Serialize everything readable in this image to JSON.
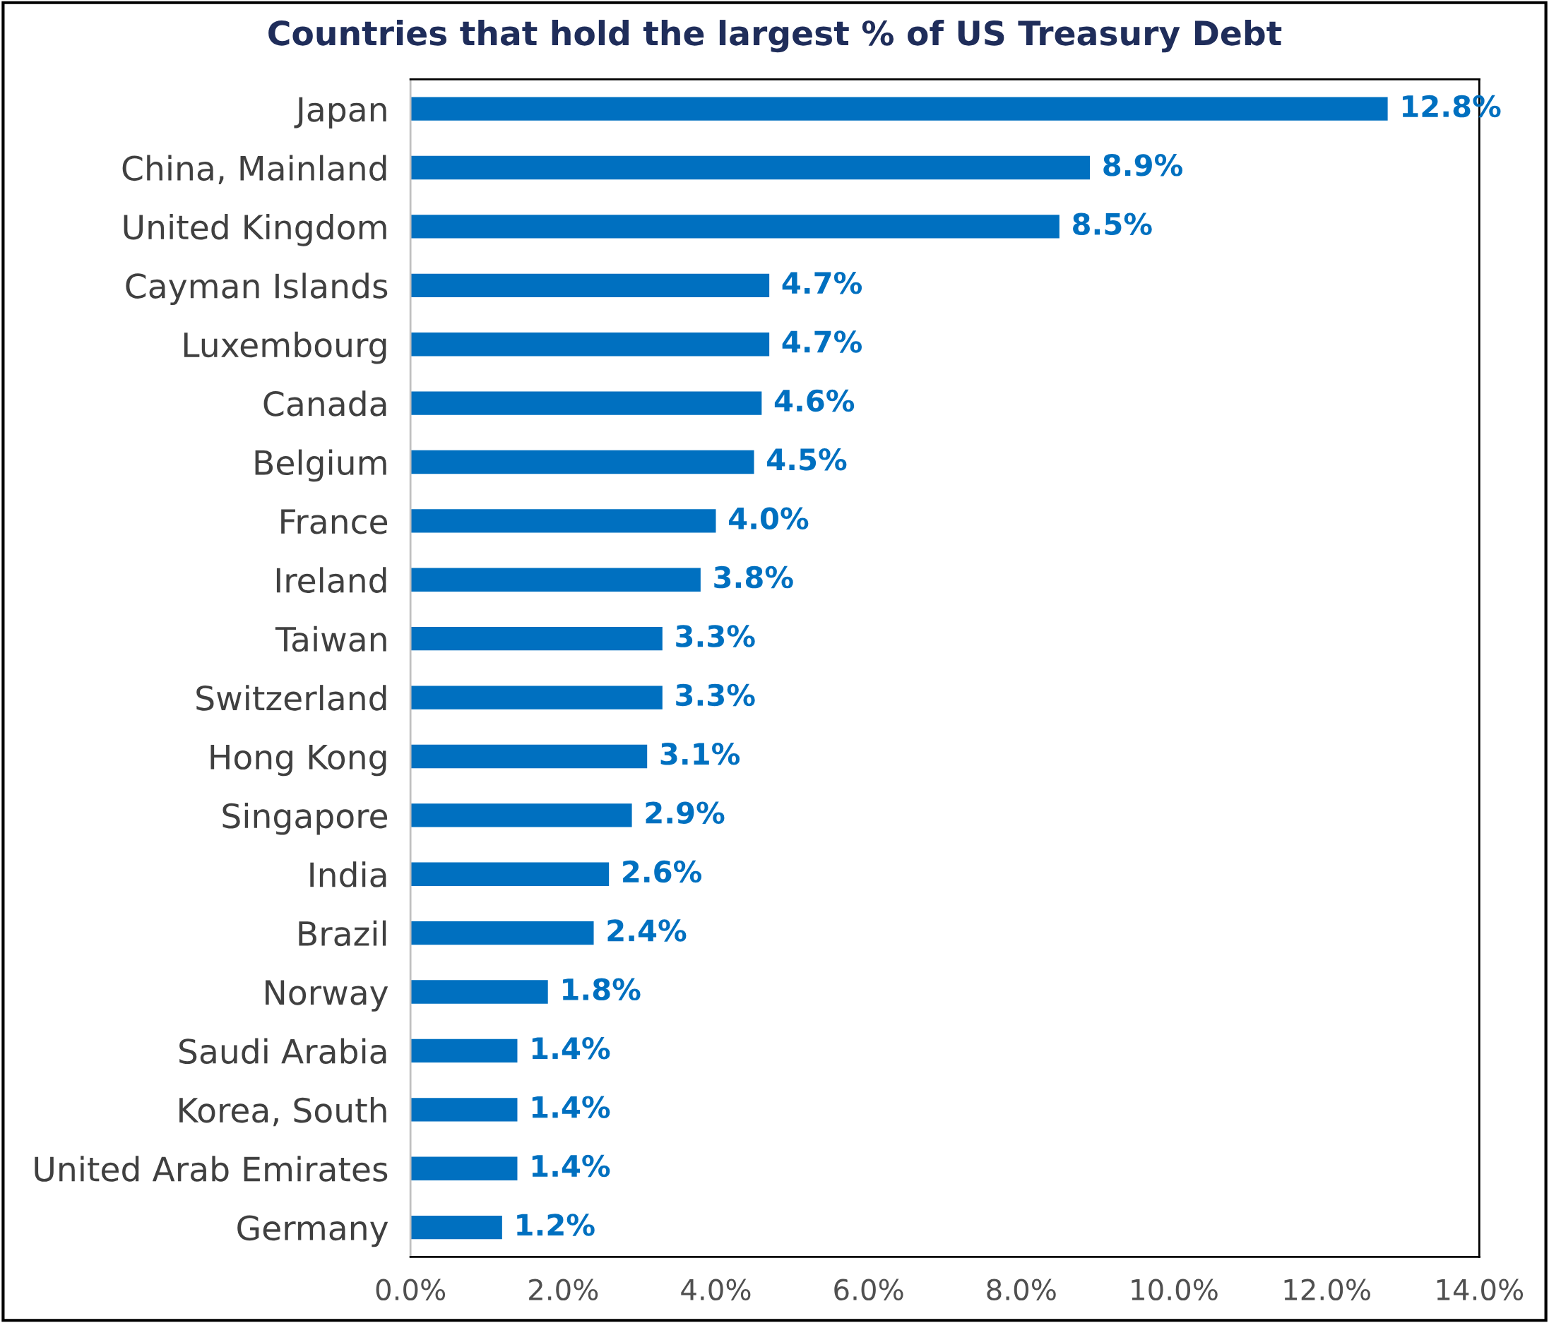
{
  "chart_data": {
    "type": "bar",
    "orientation": "horizontal",
    "title": "Countries that hold the largest % of US Treasury Debt",
    "categories": [
      "Japan",
      "China, Mainland",
      "United Kingdom",
      "Cayman Islands",
      "Luxembourg",
      "Canada",
      "Belgium",
      "France",
      "Ireland",
      "Taiwan",
      "Switzerland",
      "Hong Kong",
      "Singapore",
      "India",
      "Brazil",
      "Norway",
      "Saudi Arabia",
      "Korea, South",
      "United Arab Emirates",
      "Germany"
    ],
    "values": [
      12.8,
      8.9,
      8.5,
      4.7,
      4.7,
      4.6,
      4.5,
      4.0,
      3.8,
      3.3,
      3.3,
      3.1,
      2.9,
      2.6,
      2.4,
      1.8,
      1.4,
      1.4,
      1.4,
      1.2
    ],
    "value_labels": [
      "12.8%",
      "8.9%",
      "8.5%",
      "4.7%",
      "4.7%",
      "4.6%",
      "4.5%",
      "4.0%",
      "3.8%",
      "3.3%",
      "3.3%",
      "3.1%",
      "2.9%",
      "2.6%",
      "2.4%",
      "1.8%",
      "1.4%",
      "1.4%",
      "1.4%",
      "1.2%"
    ],
    "color": "#0070c0",
    "xlim": [
      0,
      14
    ],
    "xticks": [
      {
        "value": 0,
        "label": "0.0%"
      },
      {
        "value": 2,
        "label": "2.0%"
      },
      {
        "value": 4,
        "label": "4.0%"
      },
      {
        "value": 6,
        "label": "6.0%"
      },
      {
        "value": 8,
        "label": "8.0%"
      },
      {
        "value": 10,
        "label": "10.0%"
      },
      {
        "value": 12,
        "label": "12.0%"
      },
      {
        "value": 14,
        "label": "14.0%"
      }
    ],
    "grid": false
  }
}
